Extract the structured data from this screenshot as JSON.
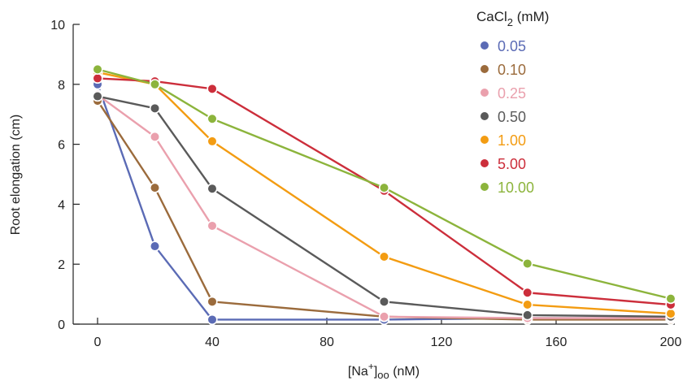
{
  "chart_data": {
    "type": "line",
    "xlabel": "[Na+]oo (nM)",
    "ylabel": "Root elongation (cm)",
    "xlim": [
      0,
      200
    ],
    "ylim": [
      0,
      10
    ],
    "x_ticks": [
      "0",
      "40",
      "80",
      "120",
      "160",
      "200"
    ],
    "y_ticks": [
      "0",
      "2",
      "4",
      "6",
      "8",
      "10"
    ],
    "x": [
      0,
      20,
      40,
      100,
      150,
      200
    ],
    "legend_title": "CaCl2 (mM)",
    "legend_position": "top-right",
    "grid": false,
    "series": [
      {
        "name": "0.05",
        "color": "#5b6bb5",
        "values": [
          8.0,
          2.6,
          0.15,
          0.15,
          0.2,
          0.2
        ]
      },
      {
        "name": "0.10",
        "color": "#9b6b3c",
        "values": [
          7.45,
          4.55,
          0.75,
          0.25,
          0.15,
          0.15
        ]
      },
      {
        "name": "0.25",
        "color": "#eaa0ad",
        "values": [
          7.65,
          6.25,
          3.28,
          0.25,
          0.2,
          0.2
        ]
      },
      {
        "name": "0.50",
        "color": "#5a5a5a",
        "values": [
          7.6,
          7.2,
          4.52,
          0.75,
          0.3,
          0.25
        ]
      },
      {
        "name": "1.00",
        "color": "#f39c12",
        "values": [
          8.4,
          8.0,
          6.1,
          2.25,
          0.65,
          0.35
        ]
      },
      {
        "name": "5.00",
        "color": "#cc2e3b",
        "values": [
          8.2,
          8.1,
          7.85,
          4.45,
          1.05,
          0.65
        ]
      },
      {
        "name": "10.00",
        "color": "#8cb43c",
        "values": [
          8.5,
          8.0,
          6.85,
          4.55,
          2.02,
          0.85
        ]
      }
    ]
  }
}
